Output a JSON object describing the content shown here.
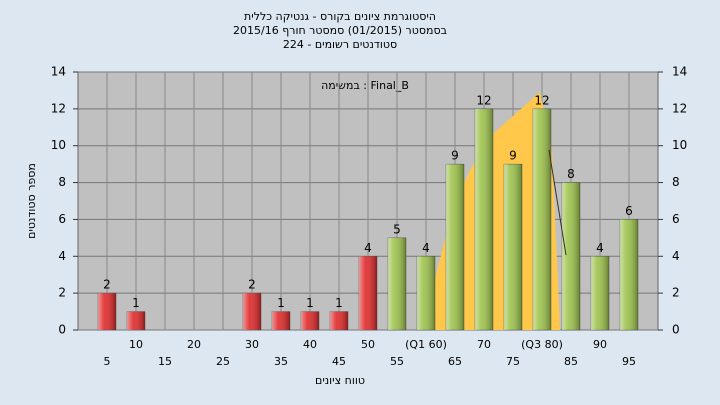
{
  "chart_data": {
    "type": "bar",
    "title": "היסטוגרמת ציונים בקורס - גנטיקה כללית",
    "subtitle": "בסמסטר  (01/2015)  סמסטר חורף 2015/16",
    "subtitle2": "סטודנטים רשומים - 224",
    "annotation": "במשימה : Final_B",
    "x_label": "טווח ציונים",
    "y_label": "מספר סטודנטים",
    "categories": [
      "5",
      "10",
      "15",
      "20",
      "25",
      "30",
      "35",
      "40",
      "45",
      "50",
      "55",
      "(Q1 60)",
      "65",
      "70",
      "75",
      "(Q3 80)",
      "85",
      "90",
      "95"
    ],
    "values": [
      2,
      1,
      0,
      0,
      0,
      2,
      1,
      1,
      1,
      4,
      5,
      4,
      9,
      12,
      9,
      12,
      8,
      4,
      6
    ],
    "colors": [
      "#e02828",
      "#e02828",
      "#e02828",
      "#e02828",
      "#e02828",
      "#e02828",
      "#e02828",
      "#e02828",
      "#e02828",
      "#e02828",
      "#9cc24a",
      "#9cc24a",
      "#9cc24a",
      "#9cc24a",
      "#9cc24a",
      "#9cc24a",
      "#9cc24a",
      "#9cc24a",
      "#9cc24a"
    ],
    "ylim": [
      0,
      14
    ],
    "yticks": [
      0,
      2,
      4,
      6,
      8,
      10,
      12,
      14
    ],
    "y2lim": [
      0,
      14
    ],
    "y2ticks": [
      0,
      2,
      4,
      6,
      8,
      10,
      12,
      14
    ],
    "grid": true
  }
}
